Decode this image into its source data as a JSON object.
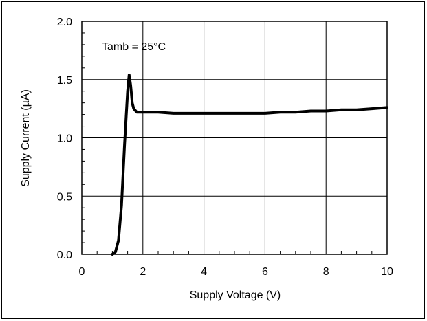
{
  "chart_data": {
    "type": "line",
    "xlabel": "Supply Voltage (V)",
    "ylabel": "Supply Current (µA)",
    "annotation": "Tamb = 25°C",
    "xlim": [
      0,
      10
    ],
    "ylim": [
      0,
      2.0
    ],
    "xticks": [
      0,
      2,
      4,
      6,
      8,
      10
    ],
    "xtick_labels": [
      "0",
      "2",
      "4",
      "6",
      "8",
      "10"
    ],
    "yticks": [
      0,
      0.5,
      1.0,
      1.5,
      2.0
    ],
    "ytick_labels": [
      "0.0",
      "0.5",
      "1.0",
      "1.5",
      "2.0"
    ],
    "grid": true,
    "series": [
      {
        "x": [
          1.0,
          1.1,
          1.2,
          1.3,
          1.4,
          1.5,
          1.55,
          1.6,
          1.65,
          1.7,
          1.8,
          2.0,
          2.5,
          3.0,
          3.5,
          4.0,
          4.5,
          5.0,
          5.5,
          6.0,
          6.5,
          7.0,
          7.5,
          8.0,
          8.5,
          9.0,
          9.5,
          10.0
        ],
        "y": [
          0.0,
          0.02,
          0.12,
          0.42,
          0.95,
          1.4,
          1.54,
          1.45,
          1.3,
          1.25,
          1.22,
          1.22,
          1.22,
          1.21,
          1.21,
          1.21,
          1.21,
          1.21,
          1.21,
          1.21,
          1.22,
          1.22,
          1.23,
          1.23,
          1.24,
          1.24,
          1.25,
          1.26
        ]
      }
    ],
    "line_color": "#000000",
    "grid_color": "#000000"
  }
}
